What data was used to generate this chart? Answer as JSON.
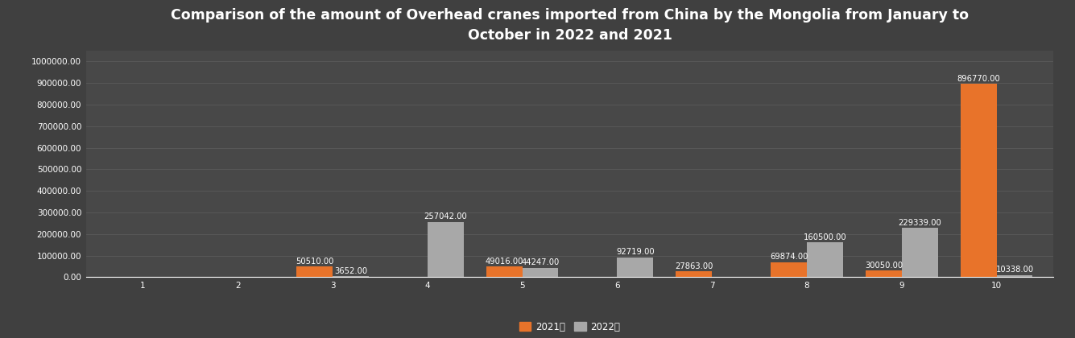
{
  "title": "Comparison of the amount of Overhead cranes imported from China by the Mongolia from January to\nOctober in 2022 and 2021",
  "months": [
    1,
    2,
    3,
    4,
    5,
    6,
    7,
    8,
    9,
    10
  ],
  "values_2021": [
    0,
    0,
    50510.0,
    0,
    49016.0,
    0,
    27863.0,
    69874.0,
    30050.0,
    896770.0
  ],
  "values_2022": [
    0,
    0,
    3652.0,
    257042.0,
    44247.0,
    92719.0,
    0,
    160500.0,
    229339.0,
    10338.0
  ],
  "color_2021": "#e8732a",
  "color_2022": "#a8a8a8",
  "background_color": "#404040",
  "plot_bg_color": "#484848",
  "text_color": "#ffffff",
  "grid_color": "#5a5a5a",
  "legend_2021": "2021年",
  "legend_2022": "2022年",
  "ylim": [
    0,
    1050000
  ],
  "yticks": [
    0,
    100000,
    200000,
    300000,
    400000,
    500000,
    600000,
    700000,
    800000,
    900000,
    1000000
  ],
  "bar_width": 0.38,
  "title_fontsize": 12.5,
  "label_fontsize": 7.2,
  "tick_fontsize": 7.5,
  "legend_fontsize": 8.5
}
